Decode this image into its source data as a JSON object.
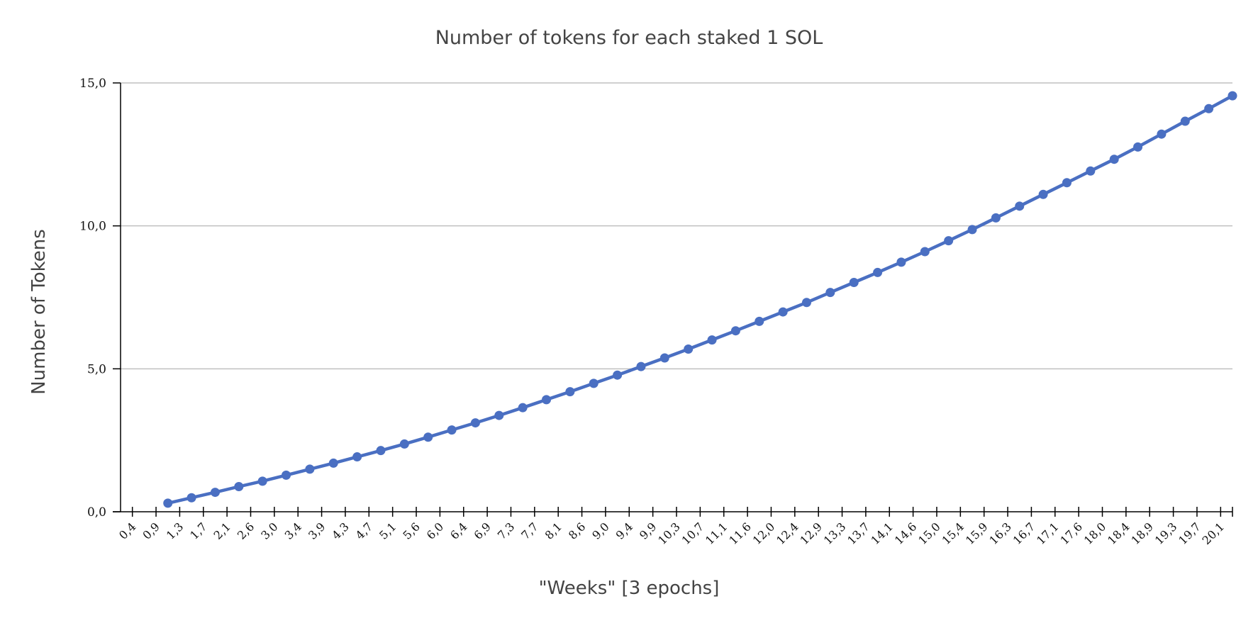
{
  "chart_data": {
    "type": "line",
    "title": "Number of tokens for each staked 1 SOL",
    "xlabel": "\"Weeks\" [3 epochs]",
    "ylabel": "Number of Tokens",
    "ylim": [
      0,
      15
    ],
    "yticks": [
      "0,0",
      "5,0",
      "10,0",
      "15,0"
    ],
    "grid": true,
    "legend": "none",
    "colors": {
      "line": "#4a6fc2",
      "grid": "#c0c0c0",
      "axis": "#000000"
    },
    "categories": [
      "0,4",
      "0,9",
      "1,3",
      "1,7",
      "2,1",
      "2,6",
      "3,0",
      "3,4",
      "3,9",
      "4,3",
      "4,7",
      "5,1",
      "5,6",
      "6,0",
      "6,4",
      "6,9",
      "7,3",
      "7,7",
      "8,1",
      "8,6",
      "9,0",
      "9,4",
      "9,9",
      "10,3",
      "10,7",
      "11,1",
      "11,6",
      "12,0",
      "12,4",
      "12,9",
      "13,3",
      "13,7",
      "14,1",
      "14,6",
      "15,0",
      "15,4",
      "15,9",
      "16,3",
      "16,7",
      "17,1",
      "17,6",
      "18,0",
      "18,4",
      "18,9",
      "19,3",
      "19,7",
      "20,1"
    ],
    "series": [
      {
        "values": [
          null,
          0.3,
          0.49,
          0.68,
          0.88,
          1.07,
          1.28,
          1.49,
          1.7,
          1.92,
          2.14,
          2.37,
          2.61,
          2.86,
          3.11,
          3.37,
          3.64,
          3.92,
          4.2,
          4.49,
          4.78,
          5.08,
          5.38,
          5.69,
          6.01,
          6.33,
          6.66,
          6.99,
          7.32,
          7.67,
          8.02,
          8.37,
          8.73,
          9.1,
          9.48,
          9.87,
          10.28,
          10.69,
          11.1,
          11.51,
          11.92,
          12.33,
          12.76,
          13.21,
          13.66,
          14.1,
          14.55
        ]
      }
    ]
  }
}
